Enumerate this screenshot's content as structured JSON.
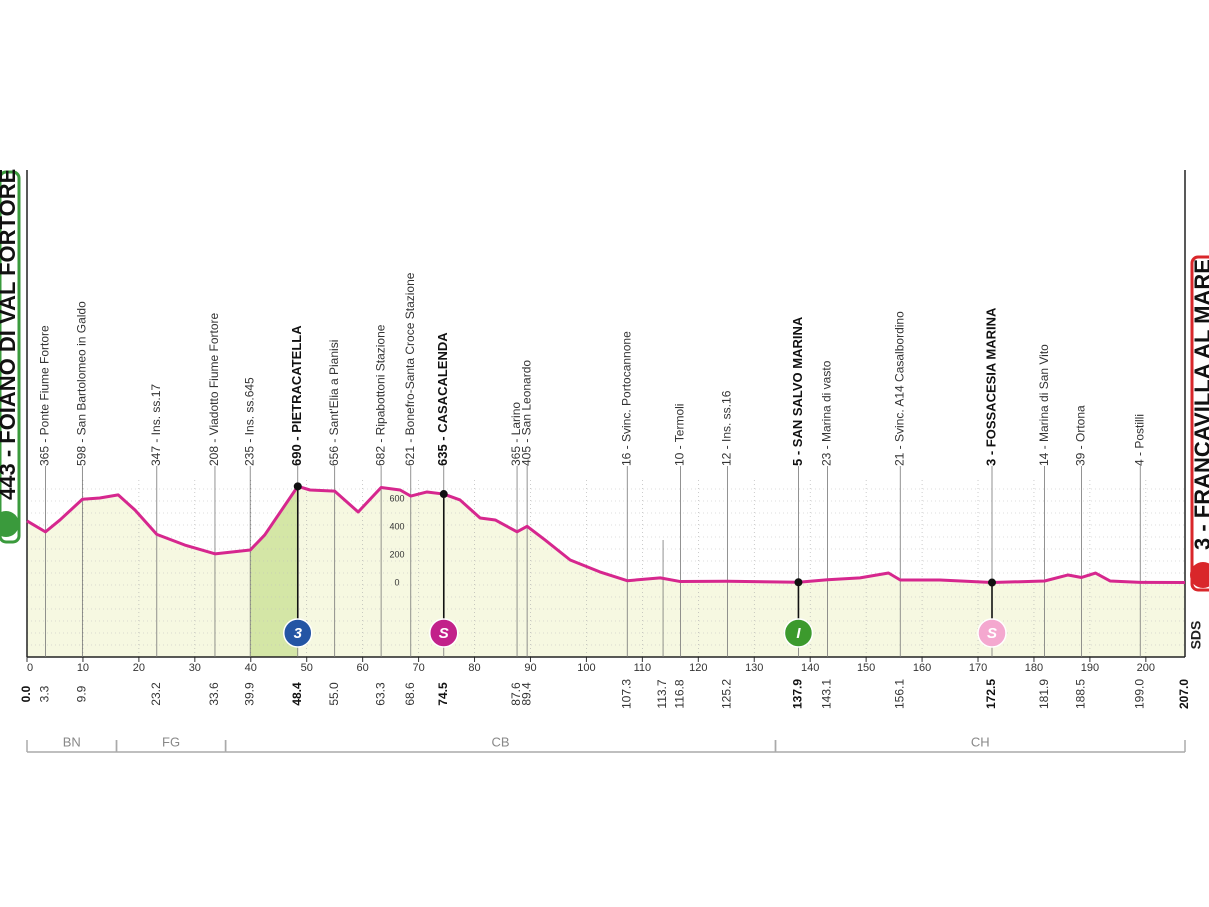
{
  "chart_data": {
    "type": "area",
    "color": "#d6278e",
    "fill_color": "#f6f8e1",
    "climb_color": "#d4e6a6",
    "x": [
      0,
      3.3,
      5.9,
      9.9,
      13,
      16.3,
      19.3,
      23.2,
      28.2,
      33.6,
      39.9,
      42.5,
      48.4,
      50.6,
      55.0,
      59.2,
      63.3,
      66.7,
      68.6,
      71.5,
      74.5,
      77.4,
      81,
      83.7,
      87.6,
      89.4,
      92.6,
      97.1,
      102.4,
      107.3,
      113.2,
      116.8,
      125.2,
      137.9,
      143.1,
      148.9,
      154,
      156.1,
      163.2,
      172.5,
      181.9,
      186.1,
      188.5,
      191,
      193.6,
      199.0,
      207.0
    ],
    "values": [
      443,
      365,
      450,
      598,
      607,
      629,
      521,
      347,
      271,
      208,
      235,
      343,
      690,
      664,
      656,
      507,
      682,
      664,
      621,
      650,
      635,
      593,
      464,
      450,
      365,
      405,
      307,
      164,
      79,
      16,
      36,
      10,
      12,
      5,
      23,
      36,
      71,
      21,
      21,
      3,
      14,
      57,
      39,
      71,
      14,
      4,
      3
    ],
    "xlim": [
      0,
      207
    ],
    "xticks": [
      0,
      10,
      20,
      30,
      40,
      50,
      60,
      70,
      80,
      90,
      100,
      110,
      120,
      130,
      140,
      150,
      160,
      170,
      180,
      190,
      200
    ],
    "ylim": [
      -529,
      2950
    ],
    "yticks": [
      0,
      200,
      400,
      600
    ],
    "climb": {
      "from_km": 39.9,
      "to_km": 48.4
    },
    "start": {
      "km": {
        "value": 0,
        "label": "0.0"
      },
      "label": "443 - FOIANO DI VAL FORTORE"
    },
    "finish": {
      "km": {
        "value": 207,
        "label": "207.0"
      },
      "label": "3 - FRANCAVILLA AL MARE"
    },
    "waypoints": [
      {
        "km": 3.3,
        "label": "365 - Ponte Fiume Fortore",
        "bold": false
      },
      {
        "km": 9.9,
        "label": "598 - San Bartolomeo in Galdo",
        "bold": false
      },
      {
        "km": 23.2,
        "label": "347 - Ins. ss.17",
        "bold": false
      },
      {
        "km": 33.6,
        "label": "208 - Viadotto Fiume Fortore",
        "bold": false
      },
      {
        "km": 39.9,
        "label": "235 - Ins. ss.645",
        "bold": false
      },
      {
        "km": 48.4,
        "label": "690 - PIETRACATELLA",
        "bold": true
      },
      {
        "km": {
          "value": 55,
          "label": "55.0"
        },
        "label": "656 - Sant'Elia a Pianisi",
        "bold": false
      },
      {
        "km": 63.3,
        "label": "682 - Ripabottoni Stazione",
        "bold": false
      },
      {
        "km": 68.6,
        "label": "621 - Bonefro-Santa Croce Stazione",
        "bold": false
      },
      {
        "km": 74.5,
        "label": "635 - CASACALENDA",
        "bold": true
      },
      {
        "km": 87.6,
        "label": "365 - Larino",
        "bold": false
      },
      {
        "km": 89.4,
        "label": "405 - San Leonardo",
        "bold": false
      },
      {
        "km": 107.3,
        "label": "16 - Svinc. Portocannone",
        "bold": false
      },
      {
        "km": 113.7,
        "label": null,
        "bold": false
      },
      {
        "km": 116.8,
        "label": "10 - Termoli",
        "bold": false
      },
      {
        "km": 125.2,
        "label": "12 - Ins. ss.16",
        "bold": false
      },
      {
        "km": 137.9,
        "label": "5 - SAN SALVO MARINA",
        "bold": true
      },
      {
        "km": 143.1,
        "label": "23 - Marina di vasto",
        "bold": false
      },
      {
        "km": 156.1,
        "label": "21 - Svinc. A14 Casalbordino",
        "bold": false
      },
      {
        "km": 172.5,
        "label": "3 - FOSSACESIA MARINA",
        "bold": true
      },
      {
        "km": 181.9,
        "label": "14 - Marina di San Vito",
        "bold": false
      },
      {
        "km": 188.5,
        "label": "39 - Ortona",
        "bold": false
      },
      {
        "km": {
          "value": 199,
          "label": "199.0"
        },
        "label": "4 - Postilli",
        "bold": false
      }
    ],
    "markers": [
      {
        "km": 48.4,
        "symbol": "3",
        "color": "#2455a4"
      },
      {
        "km": 74.5,
        "symbol": "S",
        "color": "#c2218a"
      },
      {
        "km": 137.9,
        "symbol": "I",
        "color": "#3c9a2d"
      },
      {
        "km": 172.5,
        "symbol": "S",
        "color": "#f4a8cf"
      }
    ],
    "regions": [
      {
        "name": "BN",
        "from_km": 0,
        "to_km": 16
      },
      {
        "name": "FG",
        "from_km": 16,
        "to_km": 35.5
      },
      {
        "name": "CB",
        "from_km": 35.5,
        "to_km": 133.8
      },
      {
        "name": "CH",
        "from_km": 133.8,
        "to_km": 207
      }
    ],
    "logo_text": "SDS"
  }
}
